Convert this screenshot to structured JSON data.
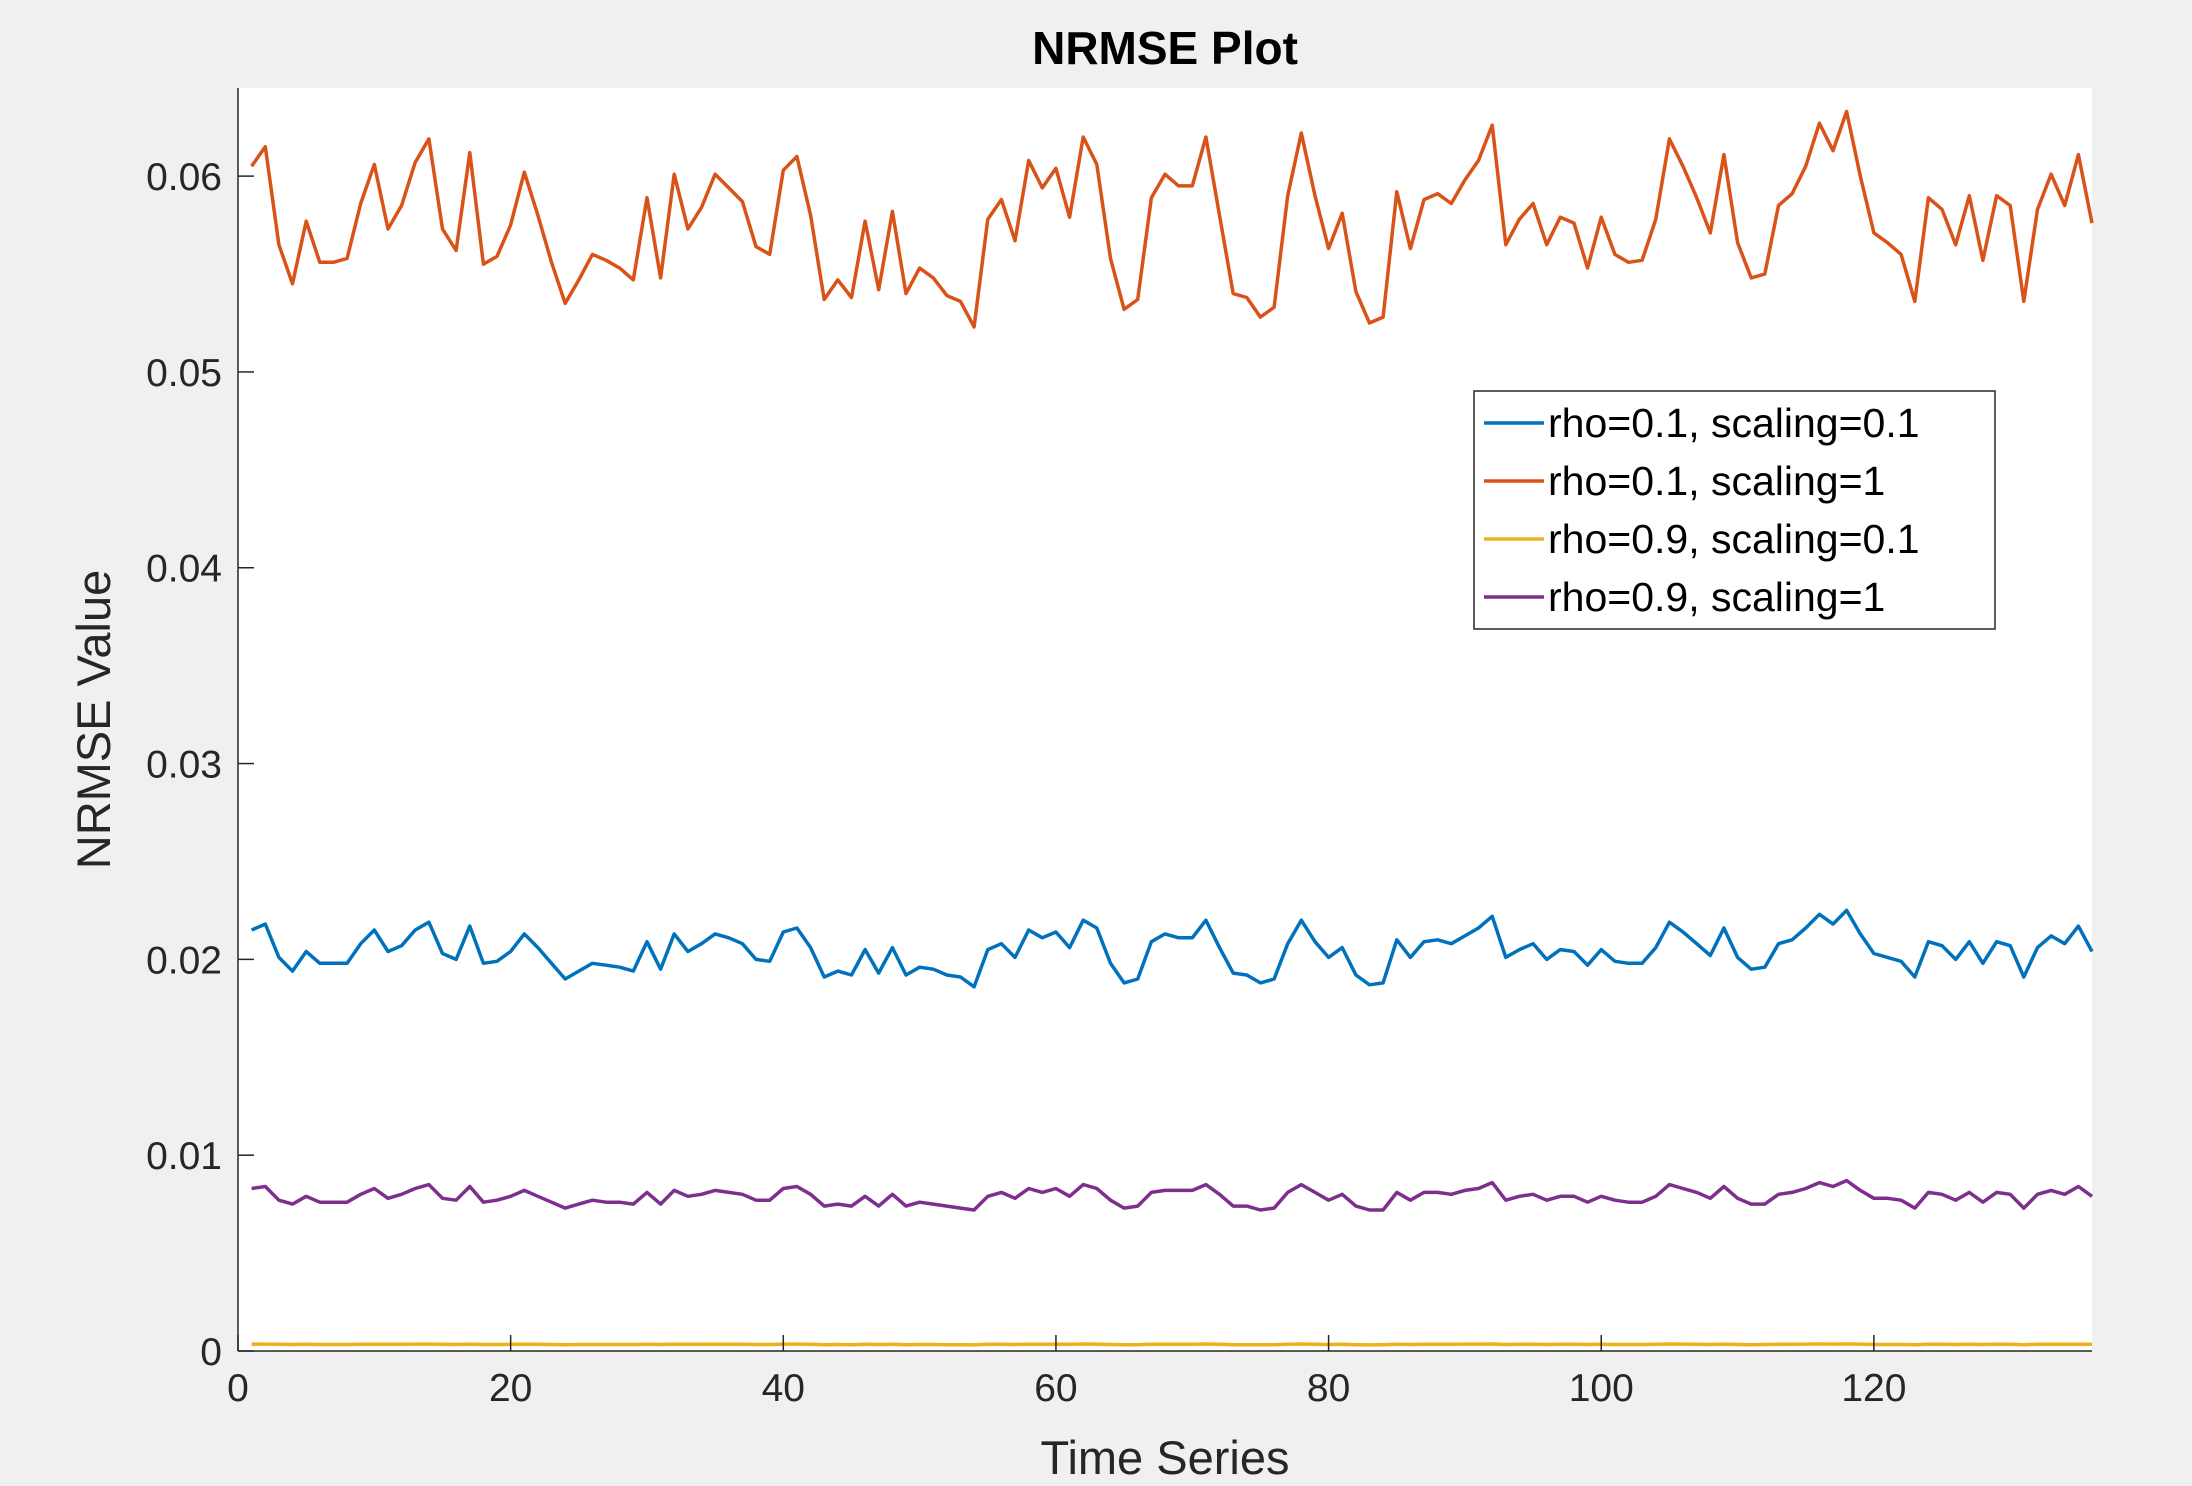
{
  "chart_data": {
    "type": "line",
    "title": "NRMSE Plot",
    "xlabel": "Time Series",
    "ylabel": "NRMSE Value",
    "xlim": [
      0,
      136
    ],
    "ylim": [
      0,
      0.0645
    ],
    "xticks": [
      0,
      20,
      40,
      60,
      80,
      100,
      120
    ],
    "yticks": [
      0,
      0.01,
      0.02,
      0.03,
      0.04,
      0.05,
      0.06
    ],
    "ytick_labels": [
      "0",
      "0.01",
      "0.02",
      "0.03",
      "0.04",
      "0.05",
      "0.06"
    ],
    "grid": false,
    "legend_position": "top-right",
    "x_start": 1,
    "series": [
      {
        "name": "rho=0.1, scaling=0.1",
        "color": "#0072BD",
        "values": [
          0.0215,
          0.0218,
          0.0201,
          0.0194,
          0.0204,
          0.0198,
          0.0198,
          0.0198,
          0.0208,
          0.0215,
          0.0204,
          0.0207,
          0.0215,
          0.0219,
          0.0203,
          0.02,
          0.0217,
          0.0198,
          0.0199,
          0.0204,
          0.0213,
          0.0206,
          0.0198,
          0.019,
          0.0194,
          0.0198,
          0.0197,
          0.0196,
          0.0194,
          0.0209,
          0.0195,
          0.0213,
          0.0204,
          0.0208,
          0.0213,
          0.0211,
          0.0208,
          0.02,
          0.0199,
          0.0214,
          0.0216,
          0.0206,
          0.0191,
          0.0194,
          0.0192,
          0.0205,
          0.0193,
          0.0206,
          0.0192,
          0.0196,
          0.0195,
          0.0192,
          0.0191,
          0.0186,
          0.0205,
          0.0208,
          0.0201,
          0.0215,
          0.0211,
          0.0214,
          0.0206,
          0.022,
          0.0216,
          0.0198,
          0.0188,
          0.019,
          0.0209,
          0.0213,
          0.0211,
          0.0211,
          0.022,
          0.0206,
          0.0193,
          0.0192,
          0.0188,
          0.019,
          0.0208,
          0.022,
          0.0209,
          0.0201,
          0.0206,
          0.0192,
          0.0187,
          0.0188,
          0.021,
          0.0201,
          0.0209,
          0.021,
          0.0208,
          0.0212,
          0.0216,
          0.0222,
          0.0201,
          0.0205,
          0.0208,
          0.02,
          0.0205,
          0.0204,
          0.0197,
          0.0205,
          0.0199,
          0.0198,
          0.0198,
          0.0206,
          0.0219,
          0.0214,
          0.0208,
          0.0202,
          0.0216,
          0.0201,
          0.0195,
          0.0196,
          0.0208,
          0.021,
          0.0216,
          0.0223,
          0.0218,
          0.0225,
          0.0213,
          0.0203,
          0.0201,
          0.0199,
          0.0191,
          0.0209,
          0.0207,
          0.02,
          0.0209,
          0.0198,
          0.0209,
          0.0207,
          0.0191,
          0.0206,
          0.0212,
          0.0208,
          0.0217,
          0.0204
        ]
      },
      {
        "name": "rho=0.1, scaling=1",
        "color": "#D95319",
        "values": [
          0.0605,
          0.0615,
          0.0565,
          0.0545,
          0.0577,
          0.0556,
          0.0556,
          0.0558,
          0.0586,
          0.0606,
          0.0573,
          0.0585,
          0.0607,
          0.0619,
          0.0573,
          0.0562,
          0.0612,
          0.0555,
          0.0559,
          0.0575,
          0.0602,
          0.058,
          0.0556,
          0.0535,
          0.0547,
          0.056,
          0.0557,
          0.0553,
          0.0547,
          0.0589,
          0.0548,
          0.0601,
          0.0573,
          0.0584,
          0.0601,
          0.0594,
          0.0587,
          0.0564,
          0.056,
          0.0603,
          0.061,
          0.058,
          0.0537,
          0.0547,
          0.0538,
          0.0577,
          0.0542,
          0.0582,
          0.054,
          0.0553,
          0.0548,
          0.0539,
          0.0536,
          0.0523,
          0.0578,
          0.0588,
          0.0567,
          0.0608,
          0.0594,
          0.0604,
          0.0579,
          0.062,
          0.0606,
          0.0558,
          0.0532,
          0.0537,
          0.0589,
          0.0601,
          0.0595,
          0.0595,
          0.062,
          0.058,
          0.054,
          0.0538,
          0.0528,
          0.0533,
          0.059,
          0.0622,
          0.059,
          0.0563,
          0.0581,
          0.0541,
          0.0525,
          0.0528,
          0.0592,
          0.0563,
          0.0588,
          0.0591,
          0.0586,
          0.0598,
          0.0608,
          0.0626,
          0.0565,
          0.0578,
          0.0586,
          0.0565,
          0.0579,
          0.0576,
          0.0553,
          0.0579,
          0.056,
          0.0556,
          0.0557,
          0.0578,
          0.0619,
          0.0605,
          0.0589,
          0.0571,
          0.0611,
          0.0566,
          0.0548,
          0.055,
          0.0585,
          0.0591,
          0.0605,
          0.0627,
          0.0613,
          0.0633,
          0.06,
          0.0571,
          0.0566,
          0.056,
          0.0536,
          0.0589,
          0.0583,
          0.0565,
          0.059,
          0.0557,
          0.059,
          0.0585,
          0.0536,
          0.0583,
          0.0601,
          0.0585,
          0.0611,
          0.0576
        ]
      },
      {
        "name": "rho=0.9, scaling=0.1",
        "color": "#EDB120",
        "values": [
          0.00035,
          0.00035,
          0.00034,
          0.00033,
          0.00034,
          0.00033,
          0.00033,
          0.00033,
          0.00034,
          0.00035,
          0.00034,
          0.00034,
          0.00035,
          0.00035,
          0.00034,
          0.00033,
          0.00035,
          0.00033,
          0.00033,
          0.00034,
          0.00035,
          0.00034,
          0.00033,
          0.00032,
          0.00033,
          0.00033,
          0.00033,
          0.00033,
          0.00033,
          0.00034,
          0.00033,
          0.00035,
          0.00034,
          0.00034,
          0.00035,
          0.00034,
          0.00034,
          0.00033,
          0.00033,
          0.00035,
          0.00035,
          0.00034,
          0.00032,
          0.00033,
          0.00032,
          0.00034,
          0.00033,
          0.00034,
          0.00032,
          0.00033,
          0.00033,
          0.00032,
          0.00032,
          0.00031,
          0.00034,
          0.00034,
          0.00033,
          0.00035,
          0.00034,
          0.00035,
          0.00034,
          0.00036,
          0.00035,
          0.00033,
          0.00032,
          0.00032,
          0.00034,
          0.00035,
          0.00034,
          0.00034,
          0.00036,
          0.00034,
          0.00032,
          0.00032,
          0.00032,
          0.00032,
          0.00034,
          0.00036,
          0.00034,
          0.00033,
          0.00034,
          0.00032,
          0.00031,
          0.00032,
          0.00034,
          0.00033,
          0.00034,
          0.00034,
          0.00034,
          0.00035,
          0.00035,
          0.00036,
          0.00033,
          0.00034,
          0.00034,
          0.00033,
          0.00034,
          0.00034,
          0.00033,
          0.00034,
          0.00033,
          0.00033,
          0.00033,
          0.00034,
          0.00036,
          0.00035,
          0.00034,
          0.00033,
          0.00035,
          0.00033,
          0.00032,
          0.00033,
          0.00034,
          0.00034,
          0.00035,
          0.00036,
          0.00035,
          0.00036,
          0.00035,
          0.00033,
          0.00033,
          0.00033,
          0.00032,
          0.00034,
          0.00034,
          0.00033,
          0.00034,
          0.00033,
          0.00034,
          0.00034,
          0.00032,
          0.00034,
          0.00035,
          0.00034,
          0.00035,
          0.00034
        ]
      },
      {
        "name": "rho=0.9, scaling=1",
        "color": "#7E2F8E",
        "values": [
          0.0083,
          0.0084,
          0.0077,
          0.0075,
          0.0079,
          0.0076,
          0.0076,
          0.0076,
          0.008,
          0.0083,
          0.0078,
          0.008,
          0.0083,
          0.0085,
          0.0078,
          0.0077,
          0.0084,
          0.0076,
          0.0077,
          0.0079,
          0.0082,
          0.0079,
          0.0076,
          0.0073,
          0.0075,
          0.0077,
          0.0076,
          0.0076,
          0.0075,
          0.0081,
          0.0075,
          0.0082,
          0.0079,
          0.008,
          0.0082,
          0.0081,
          0.008,
          0.0077,
          0.0077,
          0.0083,
          0.0084,
          0.008,
          0.0074,
          0.0075,
          0.0074,
          0.0079,
          0.0074,
          0.008,
          0.0074,
          0.0076,
          0.0075,
          0.0074,
          0.0073,
          0.0072,
          0.0079,
          0.0081,
          0.0078,
          0.0083,
          0.0081,
          0.0083,
          0.0079,
          0.0085,
          0.0083,
          0.0077,
          0.0073,
          0.0074,
          0.0081,
          0.0082,
          0.0082,
          0.0082,
          0.0085,
          0.008,
          0.0074,
          0.0074,
          0.0072,
          0.0073,
          0.0081,
          0.0085,
          0.0081,
          0.0077,
          0.008,
          0.0074,
          0.0072,
          0.0072,
          0.0081,
          0.0077,
          0.0081,
          0.0081,
          0.008,
          0.0082,
          0.0083,
          0.0086,
          0.0077,
          0.0079,
          0.008,
          0.0077,
          0.0079,
          0.0079,
          0.0076,
          0.0079,
          0.0077,
          0.0076,
          0.0076,
          0.0079,
          0.0085,
          0.0083,
          0.0081,
          0.0078,
          0.0084,
          0.0078,
          0.0075,
          0.0075,
          0.008,
          0.0081,
          0.0083,
          0.0086,
          0.0084,
          0.0087,
          0.0082,
          0.0078,
          0.0078,
          0.0077,
          0.0073,
          0.0081,
          0.008,
          0.0077,
          0.0081,
          0.0076,
          0.0081,
          0.008,
          0.0073,
          0.008,
          0.0082,
          0.008,
          0.0084,
          0.0079
        ]
      }
    ]
  }
}
